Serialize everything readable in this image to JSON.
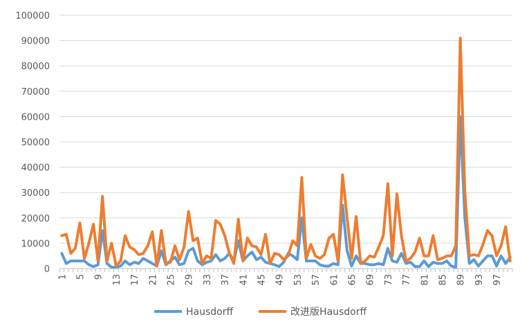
{
  "chart_data": {
    "type": "line",
    "title": "",
    "xlabel": "",
    "ylabel": "",
    "ylim": [
      0,
      100000
    ],
    "yticks": [
      "0",
      "10000",
      "20000",
      "30000",
      "40000",
      "50000",
      "60000",
      "70000",
      "80000",
      "90000",
      "100000"
    ],
    "x": [
      1,
      2,
      3,
      4,
      5,
      6,
      7,
      8,
      9,
      10,
      11,
      12,
      13,
      14,
      15,
      16,
      17,
      18,
      19,
      20,
      21,
      22,
      23,
      24,
      25,
      26,
      27,
      28,
      29,
      30,
      31,
      32,
      33,
      34,
      35,
      36,
      37,
      38,
      39,
      40,
      41,
      42,
      43,
      44,
      45,
      46,
      47,
      48,
      49,
      50,
      51,
      52,
      53,
      54,
      55,
      56,
      57,
      58,
      59,
      60,
      61,
      62,
      63,
      64,
      65,
      66,
      67,
      68,
      69,
      70,
      71,
      72,
      73,
      74,
      75,
      76,
      77,
      78,
      79,
      80,
      81,
      82,
      83,
      84,
      85,
      86,
      87,
      88,
      89,
      90,
      91,
      92,
      93,
      94,
      95,
      96,
      97,
      98,
      99,
      100
    ],
    "xtick_labels": [
      "1",
      "5",
      "9",
      "13",
      "17",
      "21",
      "25",
      "29",
      "33",
      "37",
      "41",
      "45",
      "49",
      "53",
      "57",
      "61",
      "65",
      "69",
      "73",
      "77",
      "81",
      "85",
      "89",
      "93",
      "97"
    ],
    "grid": true,
    "legend": "bottom",
    "series": [
      {
        "name": "Hausdorff",
        "color": "#5B9BD5",
        "values": [
          6000,
          2000,
          3000,
          3000,
          3000,
          3000,
          1500,
          800,
          1500,
          15000,
          2000,
          500,
          500,
          1000,
          3000,
          1500,
          2500,
          2000,
          4000,
          3000,
          2000,
          1000,
          7000,
          1500,
          3000,
          4500,
          1500,
          2000,
          7000,
          8000,
          3000,
          1500,
          2500,
          3000,
          5500,
          3000,
          4000,
          6000,
          3000,
          11000,
          3000,
          5000,
          6500,
          3500,
          4500,
          2500,
          2000,
          1500,
          800,
          2500,
          6000,
          5000,
          3500,
          20000,
          3000,
          3000,
          3000,
          1500,
          1000,
          1000,
          2000,
          1500,
          25000,
          7000,
          1000,
          5000,
          2000,
          2000,
          1500,
          1500,
          2000,
          1500,
          8000,
          3000,
          2500,
          6000,
          2000,
          2500,
          800,
          800,
          3000,
          800,
          2500,
          2000,
          2000,
          3000,
          1000,
          500,
          60000,
          20000,
          2000,
          3500,
          1000,
          3000,
          5000,
          5000,
          1000,
          5000,
          2000,
          4500
        ]
      },
      {
        "name": "改进版Hausdorff",
        "color": "#ED7D31",
        "values": [
          13000,
          13500,
          6000,
          8000,
          18000,
          4000,
          10000,
          17500,
          3000,
          28500,
          3000,
          10000,
          1000,
          3000,
          13000,
          8500,
          7500,
          5500,
          6000,
          9000,
          14500,
          1000,
          15000,
          2000,
          2500,
          9000,
          3500,
          8500,
          22500,
          11000,
          12000,
          2000,
          5000,
          4000,
          19000,
          17500,
          13000,
          6000,
          2000,
          19500,
          3000,
          12000,
          9000,
          8500,
          5500,
          13500,
          2000,
          6000,
          5500,
          3500,
          5000,
          11000,
          9000,
          36000,
          4000,
          9500,
          5000,
          4000,
          5500,
          12000,
          13500,
          3000,
          37000,
          20000,
          4000,
          20500,
          2000,
          3000,
          5000,
          4500,
          8500,
          13000,
          33500,
          5000,
          29500,
          13000,
          3000,
          4000,
          6500,
          12000,
          5000,
          5000,
          13000,
          3500,
          4000,
          5000,
          5000,
          9000,
          91000,
          30000,
          5000,
          5500,
          5000,
          9500,
          15000,
          13000,
          5000,
          9000,
          16500,
          3000
        ]
      }
    ]
  }
}
